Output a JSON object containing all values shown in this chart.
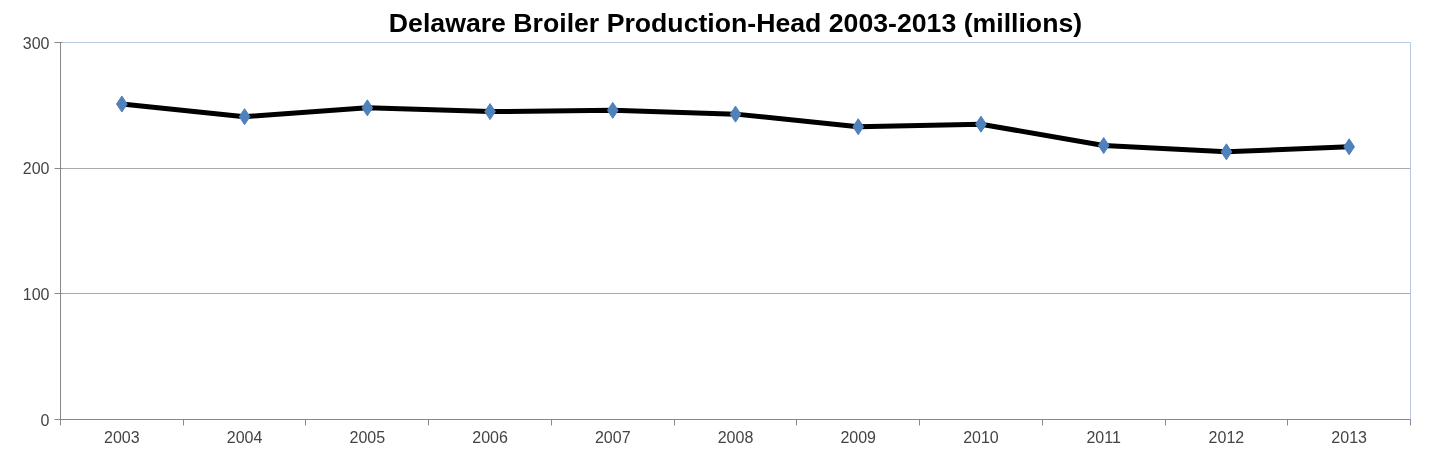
{
  "chart_data": {
    "type": "line",
    "title": "Delaware Broiler Production-Head 2003-2013 (millions)",
    "categories": [
      "2003",
      "2004",
      "2005",
      "2006",
      "2007",
      "2008",
      "2009",
      "2010",
      "2011",
      "2012",
      "2013"
    ],
    "series": [
      {
        "color": "#4f81bd",
        "values": [
          251,
          241,
          248,
          245,
          246,
          243,
          233,
          235,
          218,
          213,
          217
        ]
      }
    ],
    "ylim": [
      0,
      300
    ],
    "yticks": [
      0,
      100,
      200,
      300
    ],
    "grid": "y",
    "marker": "diamond",
    "line_style": "solid"
  }
}
